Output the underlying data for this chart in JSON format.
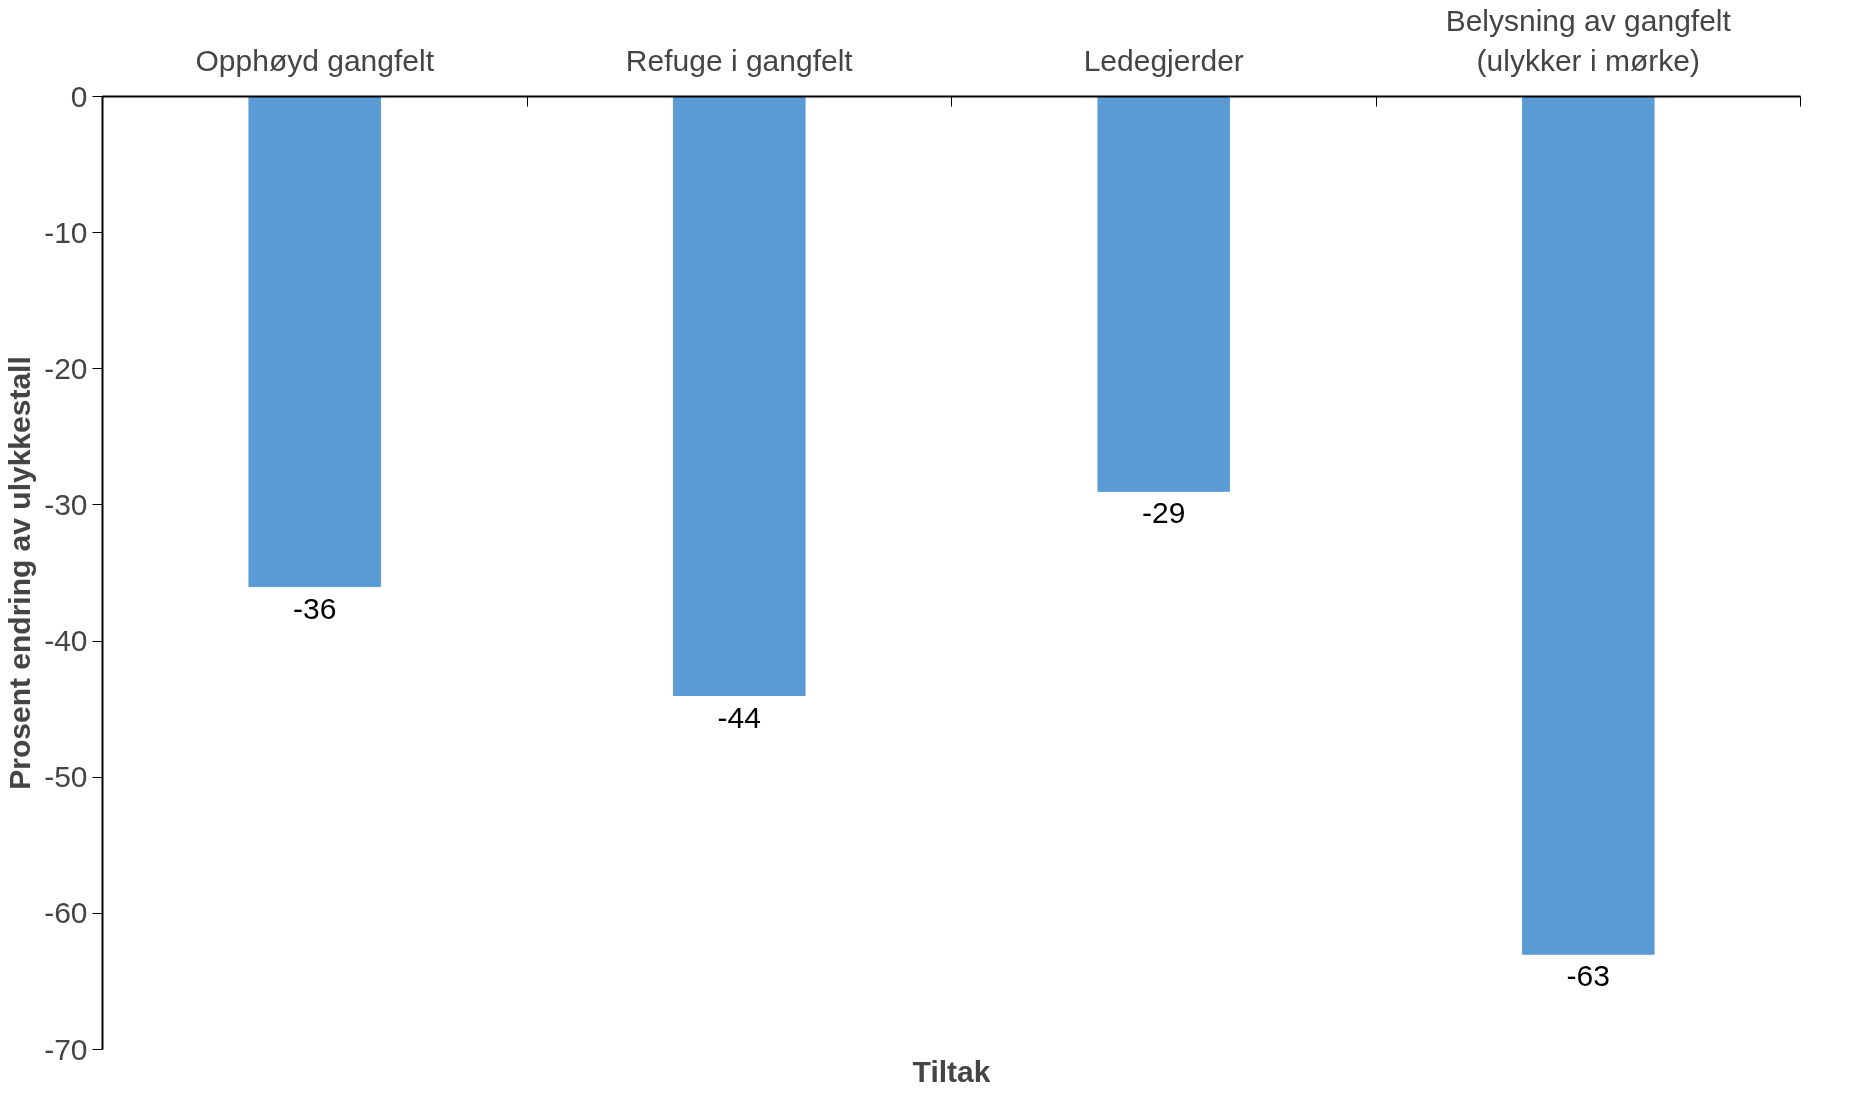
{
  "chart_data": {
    "type": "bar",
    "xlabel": "Tiltak",
    "ylabel": "Prosent endring av ulykkestall",
    "categories": [
      "Opphøyd gangfelt",
      "Refuge i gangfelt",
      "Ledegjerder",
      "Belysning av gangfelt\n(ulykker i mørke)"
    ],
    "values": [
      -36,
      -44,
      -29,
      -63
    ],
    "color": "#5b9bd5",
    "ylim": [
      -70,
      0
    ],
    "yticks": [
      -70,
      -60,
      -50,
      -40,
      -30,
      -20,
      -10,
      0
    ],
    "grid": false,
    "data_labels": true
  }
}
